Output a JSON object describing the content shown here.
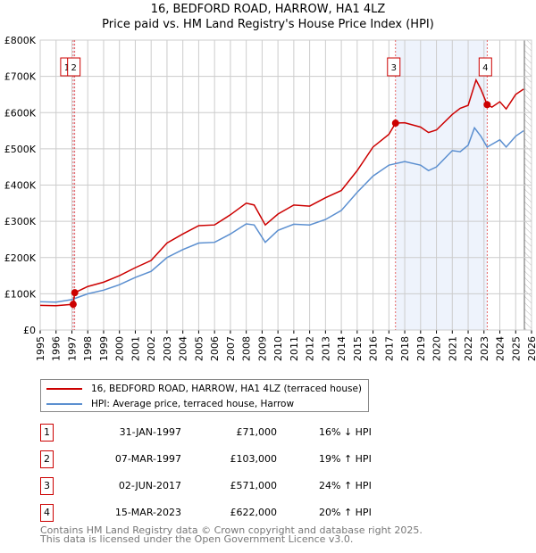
{
  "chart_data": {
    "type": "line",
    "title": "16, BEDFORD ROAD, HARROW, HA1 4LZ",
    "subtitle": "Price paid vs. HM Land Registry's House Price Index (HPI)",
    "xlim": [
      1995,
      2026
    ],
    "ylim": [
      0,
      800000
    ],
    "xticks": [
      "1995",
      "1996",
      "1997",
      "1998",
      "1999",
      "2000",
      "2001",
      "2002",
      "2003",
      "2004",
      "2005",
      "2006",
      "2007",
      "2008",
      "2009",
      "2010",
      "2011",
      "2012",
      "2013",
      "2014",
      "2015",
      "2016",
      "2017",
      "2018",
      "2019",
      "2020",
      "2021",
      "2022",
      "2023",
      "2024",
      "2025",
      "2026"
    ],
    "yticks": [
      "£0",
      "£100K",
      "£200K",
      "£300K",
      "£400K",
      "£500K",
      "£600K",
      "£700K",
      "£800K"
    ],
    "grid": true,
    "series": [
      {
        "name": "16, BEDFORD ROAD, HARROW, HA1 4LZ (terraced house)",
        "color": "#cc0000",
        "x": [
          1995,
          1996,
          1997.08,
          1997.18,
          1998,
          1999,
          2000,
          2001,
          2002,
          2003,
          2004,
          2005,
          2006,
          2007,
          2008,
          2008.5,
          2009.2,
          2010,
          2011,
          2012,
          2013,
          2014,
          2015,
          2016,
          2017,
          2017.42,
          2018,
          2019,
          2019.5,
          2020,
          2021,
          2021.5,
          2022,
          2022.5,
          2022.8,
          2023.2,
          2023.5,
          2024,
          2024.4,
          2025,
          2025.5
        ],
        "y": [
          68000,
          67000,
          71000,
          103000,
          120000,
          132000,
          150000,
          172000,
          192000,
          240000,
          265000,
          288000,
          290000,
          318000,
          350000,
          345000,
          290000,
          320000,
          345000,
          342000,
          365000,
          385000,
          440000,
          505000,
          540000,
          571000,
          572000,
          560000,
          545000,
          552000,
          595000,
          612000,
          620000,
          690000,
          665000,
          622000,
          615000,
          630000,
          610000,
          650000,
          665000
        ]
      },
      {
        "name": "HPI: Average price, terraced house, Harrow",
        "color": "#5b8fd0",
        "x": [
          1995,
          1996,
          1997,
          1998,
          1999,
          2000,
          2001,
          2002,
          2003,
          2004,
          2005,
          2006,
          2007,
          2008,
          2008.5,
          2009.2,
          2010,
          2011,
          2012,
          2013,
          2014,
          2015,
          2016,
          2017,
          2018,
          2019,
          2019.5,
          2020,
          2021,
          2021.5,
          2022,
          2022.4,
          2022.8,
          2023.2,
          2024,
          2024.4,
          2025,
          2025.5
        ],
        "y": [
          78000,
          77000,
          84000,
          100000,
          110000,
          125000,
          145000,
          162000,
          200000,
          222000,
          240000,
          242000,
          265000,
          293000,
          290000,
          242000,
          275000,
          292000,
          290000,
          305000,
          330000,
          380000,
          425000,
          455000,
          465000,
          455000,
          440000,
          450000,
          495000,
          492000,
          510000,
          558000,
          535000,
          505000,
          525000,
          505000,
          535000,
          550000
        ]
      }
    ],
    "sales": [
      {
        "n": "1",
        "date": "31-JAN-1997",
        "x": 1997.08,
        "price": "£71,000",
        "value": 71000,
        "hpi": "16% ↓ HPI"
      },
      {
        "n": "2",
        "date": "07-MAR-1997",
        "x": 1997.18,
        "price": "£103,000",
        "value": 103000,
        "hpi": "19% ↑ HPI"
      },
      {
        "n": "3",
        "date": "02-JUN-2017",
        "x": 2017.42,
        "price": "£571,000",
        "value": 571000,
        "hpi": "24% ↑ HPI"
      },
      {
        "n": "4",
        "date": "15-MAR-2023",
        "x": 2023.2,
        "price": "£622,000",
        "value": 622000,
        "hpi": "20% ↑ HPI"
      }
    ],
    "legend_position": "below"
  },
  "footer": {
    "line1": "Contains HM Land Registry data © Crown copyright and database right 2025.",
    "line2": "This data is licensed under the Open Government Licence v3.0."
  }
}
